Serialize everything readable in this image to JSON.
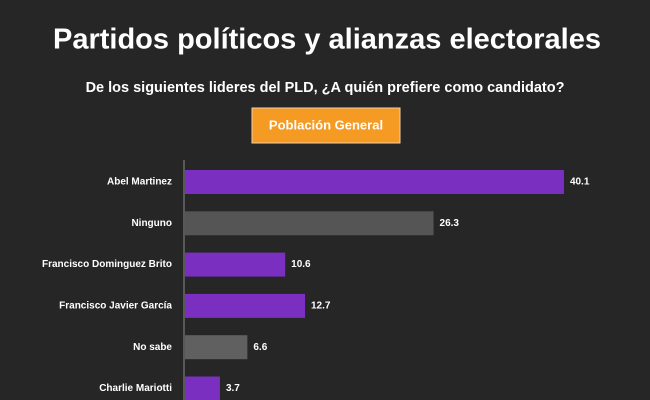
{
  "chart_data": {
    "type": "bar",
    "orientation": "horizontal",
    "title": "Partidos políticos y alianzas electorales",
    "subtitle": "De los siguientes lideres del PLD, ¿A quién prefiere como candidato?",
    "badge": "Población General",
    "categories": [
      "Abel Martinez",
      "Ninguno",
      "Francisco Dominguez Brito",
      "Francisco Javier García",
      "No sabe",
      "Charlie Mariotti"
    ],
    "values": [
      40.1,
      26.3,
      10.6,
      12.7,
      6.6,
      3.7
    ],
    "colors": [
      "#7a2fc0",
      "#555555",
      "#7a2fc0",
      "#7a2fc0",
      "#606060",
      "#7a2fc0"
    ]
  }
}
